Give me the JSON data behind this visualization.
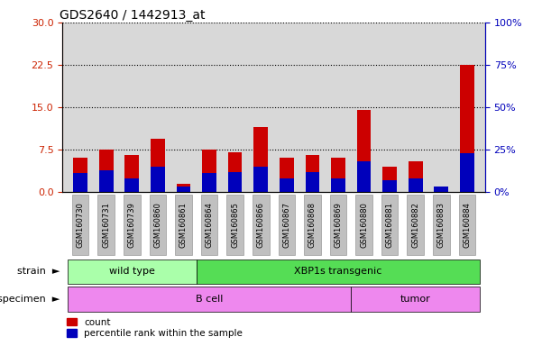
{
  "title": "GDS2640 / 1442913_at",
  "samples": [
    "GSM160730",
    "GSM160731",
    "GSM160739",
    "GSM160860",
    "GSM160861",
    "GSM160864",
    "GSM160865",
    "GSM160866",
    "GSM160867",
    "GSM160868",
    "GSM160869",
    "GSM160880",
    "GSM160881",
    "GSM160882",
    "GSM160883",
    "GSM160884"
  ],
  "count": [
    6.0,
    7.5,
    6.5,
    9.5,
    1.5,
    7.5,
    7.0,
    11.5,
    6.0,
    6.5,
    6.0,
    14.5,
    4.5,
    5.5,
    0.5,
    22.5
  ],
  "percentile_pct": [
    11,
    13,
    8,
    15,
    3,
    11,
    12,
    15,
    8,
    12,
    8,
    18,
    7,
    8,
    3,
    23
  ],
  "ylim_left": [
    0,
    30
  ],
  "ylim_right": [
    0,
    100
  ],
  "yticks_left": [
    0,
    7.5,
    15,
    22.5,
    30
  ],
  "yticks_right": [
    0,
    25,
    50,
    75,
    100
  ],
  "strain_groups": [
    {
      "label": "wild type",
      "start": 0,
      "end": 5
    },
    {
      "label": "XBP1s transgenic",
      "start": 5,
      "end": 16
    }
  ],
  "specimen_groups": [
    {
      "label": "B cell",
      "start": 0,
      "end": 11
    },
    {
      "label": "tumor",
      "start": 11,
      "end": 16
    }
  ],
  "strain_color_left": "#AAFFAA",
  "strain_color_right": "#55DD55",
  "specimen_color": "#EE88EE",
  "bar_color_count": "#CC0000",
  "bar_color_pct": "#0000BB",
  "plot_bg_color": "#D8D8D8",
  "tick_box_color": "#C0C0C0",
  "left_axis_color": "#CC2200",
  "right_axis_color": "#0000BB",
  "legend_count_label": "count",
  "legend_pct_label": "percentile rank within the sample"
}
